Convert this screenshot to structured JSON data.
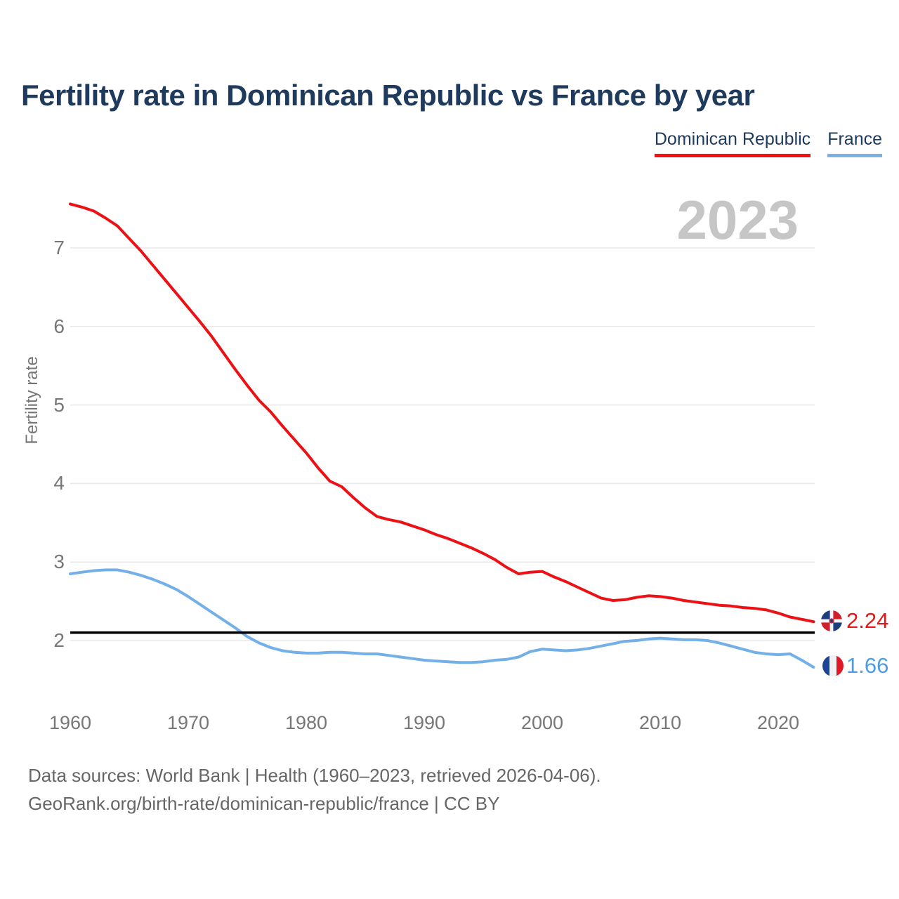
{
  "title": "Fertility rate in Dominican Republic vs France by year",
  "watermark": "2023",
  "legend": [
    {
      "label": "Dominican Republic",
      "color": "#f21111"
    },
    {
      "label": "France",
      "color": "#7ab3e3"
    }
  ],
  "axes": {
    "y_label": "Fertility rate",
    "y_ticks": [
      7,
      6,
      5,
      4,
      3,
      2
    ],
    "x_ticks": [
      1960,
      1970,
      1980,
      1990,
      2000,
      2010,
      2020
    ]
  },
  "end_labels": {
    "dominican_republic": {
      "value": "2.24",
      "flag": "dominican-republic-flag"
    },
    "france": {
      "value": "1.66",
      "flag": "france-flag"
    }
  },
  "footer": {
    "line1": "Data sources: World Bank | Health (1960–2023, retrieved 2026-04-06).",
    "line2": "GeoRank.org/birth-rate/dominican-republic/france | CC BY"
  },
  "chart_data": {
    "type": "line",
    "title": "Fertility rate in Dominican Republic vs France by year",
    "xlabel": "",
    "ylabel": "Fertility rate",
    "x_range": [
      1960,
      2023
    ],
    "ylim": [
      1.5,
      7.8
    ],
    "grid": "horizontal",
    "legend_position": "top-right",
    "reference_line_y": 2.1,
    "years": [
      1960,
      1961,
      1962,
      1963,
      1964,
      1965,
      1966,
      1967,
      1968,
      1969,
      1970,
      1971,
      1972,
      1973,
      1974,
      1975,
      1976,
      1977,
      1978,
      1979,
      1980,
      1981,
      1982,
      1983,
      1984,
      1985,
      1986,
      1987,
      1988,
      1989,
      1990,
      1991,
      1992,
      1993,
      1994,
      1995,
      1996,
      1997,
      1998,
      1999,
      2000,
      2001,
      2002,
      2003,
      2004,
      2005,
      2006,
      2007,
      2008,
      2009,
      2010,
      2011,
      2012,
      2013,
      2014,
      2015,
      2016,
      2017,
      2018,
      2019,
      2020,
      2021,
      2022,
      2023
    ],
    "series": [
      {
        "name": "Dominican Republic",
        "color": "#ec1115",
        "values": [
          7.56,
          7.52,
          7.47,
          7.38,
          7.28,
          7.12,
          6.96,
          6.78,
          6.6,
          6.42,
          6.24,
          6.06,
          5.87,
          5.66,
          5.45,
          5.25,
          5.06,
          4.91,
          4.73,
          4.56,
          4.39,
          4.2,
          4.03,
          3.96,
          3.82,
          3.69,
          3.58,
          3.54,
          3.51,
          3.46,
          3.41,
          3.35,
          3.3,
          3.24,
          3.18,
          3.11,
          3.03,
          2.93,
          2.85,
          2.87,
          2.88,
          2.81,
          2.75,
          2.68,
          2.61,
          2.54,
          2.51,
          2.52,
          2.55,
          2.57,
          2.56,
          2.54,
          2.51,
          2.49,
          2.47,
          2.45,
          2.44,
          2.42,
          2.41,
          2.39,
          2.35,
          2.3,
          2.27,
          2.24
        ]
      },
      {
        "name": "France",
        "color": "#74b0e8",
        "values": [
          2.85,
          2.87,
          2.89,
          2.9,
          2.9,
          2.87,
          2.83,
          2.78,
          2.72,
          2.65,
          2.56,
          2.46,
          2.36,
          2.26,
          2.16,
          2.05,
          1.97,
          1.91,
          1.87,
          1.85,
          1.84,
          1.84,
          1.85,
          1.85,
          1.84,
          1.83,
          1.83,
          1.81,
          1.79,
          1.77,
          1.75,
          1.74,
          1.73,
          1.72,
          1.72,
          1.73,
          1.75,
          1.76,
          1.79,
          1.86,
          1.89,
          1.88,
          1.87,
          1.88,
          1.9,
          1.93,
          1.96,
          1.99,
          2.0,
          2.02,
          2.03,
          2.02,
          2.01,
          2.01,
          2.0,
          1.97,
          1.93,
          1.89,
          1.85,
          1.83,
          1.82,
          1.83,
          1.75,
          1.66
        ]
      }
    ]
  }
}
